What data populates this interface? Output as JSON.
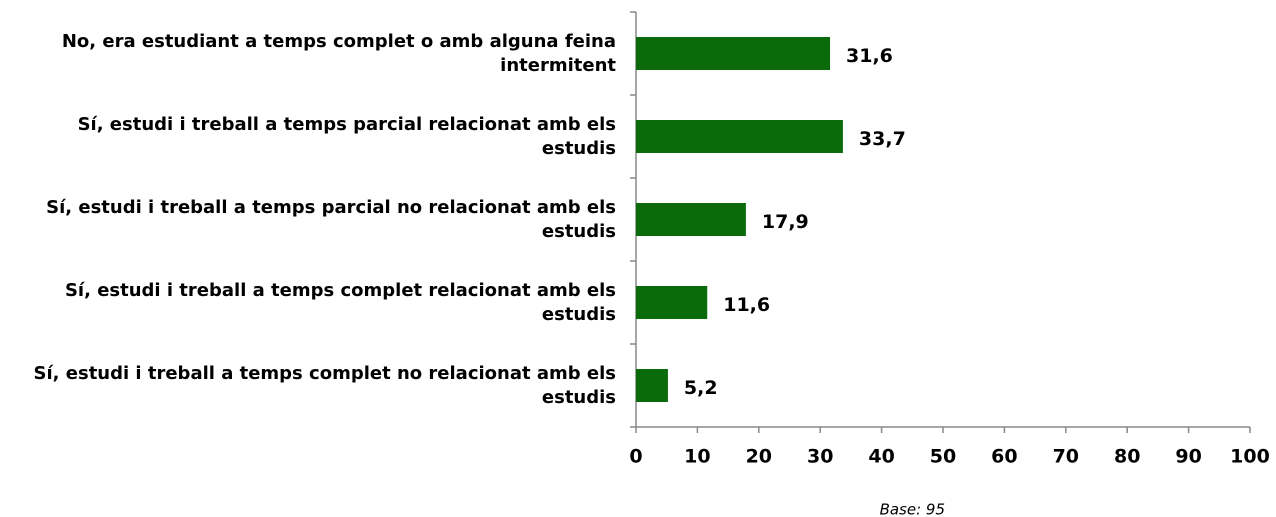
{
  "chart_data": {
    "type": "bar",
    "orientation": "horizontal",
    "categories": [
      "No, era estudiant a temps complet o amb alguna feina intermitent",
      "Sí, estudi i treball a temps parcial relacionat amb els estudis",
      "Sí, estudi i treball a temps parcial no relacionat amb els estudis",
      "Sí, estudi i treball a temps complet relacionat amb els estudis",
      "Sí, estudi i treball a temps complet no relacionat amb els estudis"
    ],
    "values": [
      31.6,
      33.7,
      17.9,
      11.6,
      5.2
    ],
    "value_labels": [
      "31,6",
      "33,7",
      "17,9",
      "11,6",
      "5,2"
    ],
    "color": "#0b6b0b",
    "xlim": [
      0,
      100
    ],
    "xticks": [
      0,
      10,
      20,
      30,
      40,
      50,
      60,
      70,
      80,
      90,
      100
    ],
    "annotation": "Base: 95"
  }
}
